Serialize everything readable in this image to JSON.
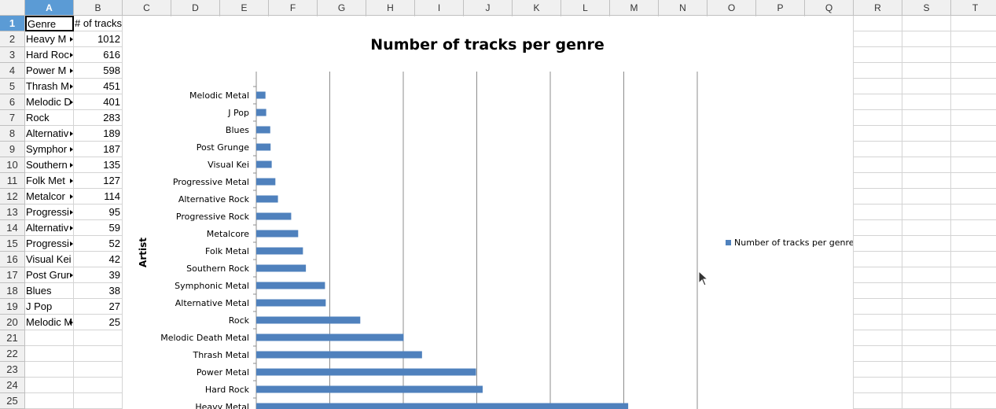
{
  "sheet": {
    "columns": [
      "A",
      "B",
      "C",
      "D",
      "E",
      "F",
      "G",
      "H",
      "I",
      "J",
      "K",
      "L",
      "M",
      "N",
      "O",
      "P",
      "Q",
      "R",
      "S",
      "T"
    ],
    "rows": [
      "1",
      "2",
      "3",
      "4",
      "5",
      "6",
      "7",
      "8",
      "9",
      "10",
      "11",
      "12",
      "13",
      "14",
      "15",
      "16",
      "17",
      "18",
      "19",
      "20",
      "21",
      "22",
      "23",
      "24",
      "25"
    ],
    "header_a": "Genre",
    "header_b": "# of tracks",
    "table": [
      {
        "a": "Heavy M",
        "b": "1012"
      },
      {
        "a": "Hard Roc",
        "b": "616"
      },
      {
        "a": "Power M",
        "b": "598"
      },
      {
        "a": "Thrash M",
        "b": "451"
      },
      {
        "a": "Melodic D",
        "b": "401"
      },
      {
        "a": "Rock",
        "b": "283"
      },
      {
        "a": "Alternativ",
        "b": "189"
      },
      {
        "a": "Symphor",
        "b": "187"
      },
      {
        "a": "Southern",
        "b": "135"
      },
      {
        "a": "Folk Met",
        "b": "127"
      },
      {
        "a": "Metalcor",
        "b": "114"
      },
      {
        "a": "Progressi",
        "b": "95"
      },
      {
        "a": "Alternativ",
        "b": "59"
      },
      {
        "a": "Progressi",
        "b": "52"
      },
      {
        "a": "Visual Kei",
        "b": "42"
      },
      {
        "a": "Post Grur",
        "b": "39"
      },
      {
        "a": "Blues",
        "b": "38"
      },
      {
        "a": "J Pop",
        "b": "27"
      },
      {
        "a": "Melodic M",
        "b": "25"
      }
    ],
    "truncated_rows": [
      0,
      1,
      2,
      3,
      4,
      6,
      7,
      8,
      9,
      10,
      11,
      12,
      13,
      15,
      18
    ],
    "accent_color": "#5b9bd5"
  },
  "chart_data": {
    "type": "bar",
    "orientation": "horizontal",
    "title": "Number of tracks per genre",
    "ylabel": "Artist",
    "xlabel": "",
    "xlim": [
      0,
      1200
    ],
    "grid": true,
    "legend_position": "right",
    "bar_color": "#4f81bd",
    "categories": [
      "Heavy Metal",
      "Hard Rock",
      "Power Metal",
      "Thrash Metal",
      "Melodic Death Metal",
      "Rock",
      "Alternative Metal",
      "Symphonic Metal",
      "Southern Rock",
      "Folk Metal",
      "Metalcore",
      "Progressive Rock",
      "Alternative Rock",
      "Progressive Metal",
      "Visual Kei",
      "Post Grunge",
      "Blues",
      "J Pop",
      "Melodic Metal"
    ],
    "series": [
      {
        "name": "Number of tracks per genre",
        "values": [
          1012,
          616,
          598,
          451,
          401,
          283,
          189,
          187,
          135,
          127,
          114,
          95,
          59,
          52,
          42,
          39,
          38,
          27,
          25
        ]
      }
    ]
  }
}
